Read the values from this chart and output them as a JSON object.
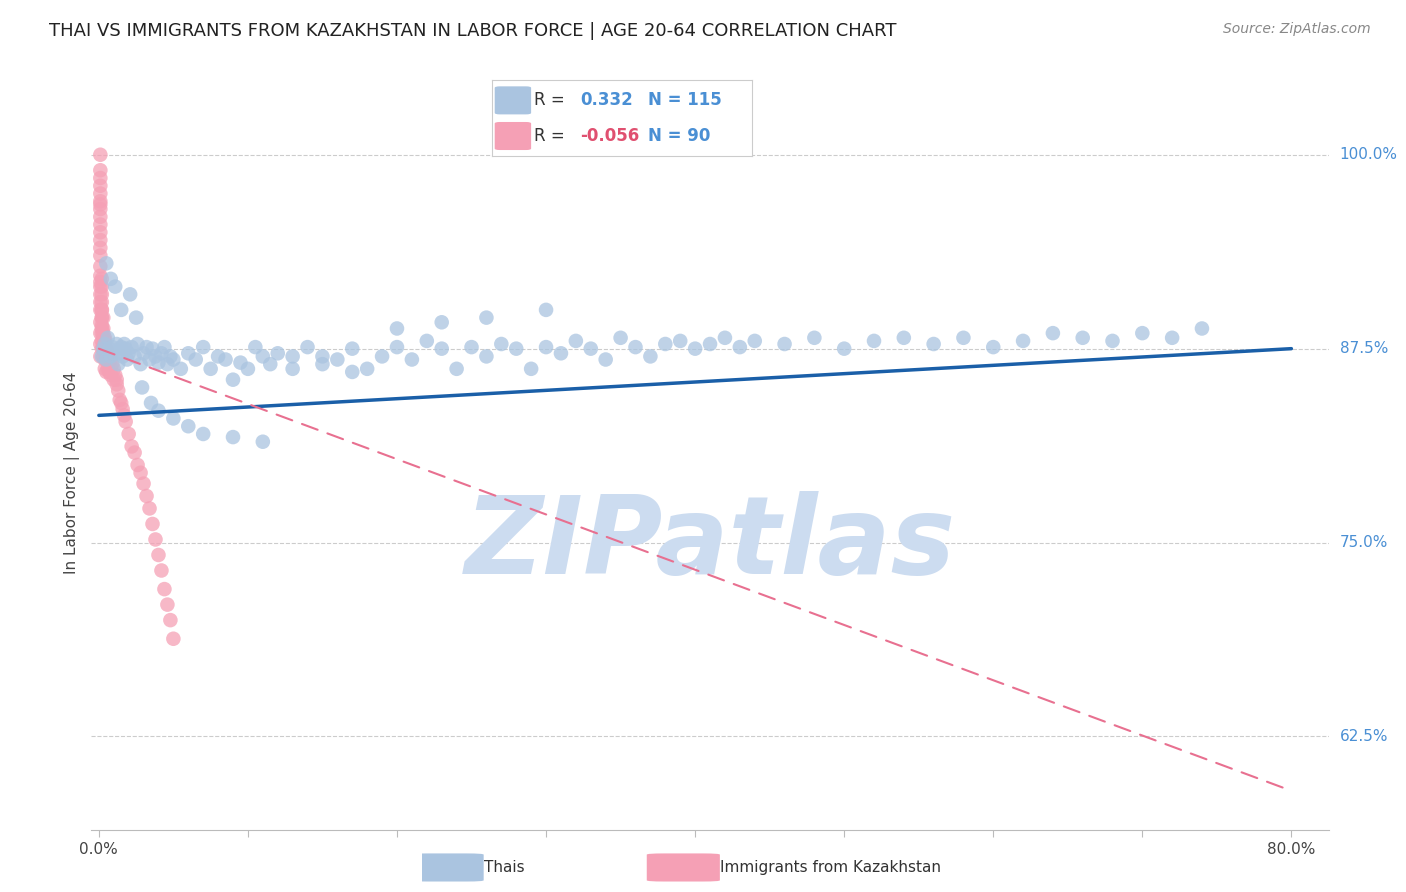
{
  "title": "THAI VS IMMIGRANTS FROM KAZAKHSTAN IN LABOR FORCE | AGE 20-64 CORRELATION CHART",
  "source": "Source: ZipAtlas.com",
  "ylabel": "In Labor Force | Age 20-64",
  "ytick_labels": [
    "100.0%",
    "87.5%",
    "75.0%",
    "62.5%"
  ],
  "ytick_values": [
    1.0,
    0.875,
    0.75,
    0.625
  ],
  "ymin": 0.565,
  "ymax": 1.025,
  "xmin": -0.005,
  "xmax": 0.825,
  "r_thai": 0.332,
  "n_thai": 115,
  "r_kaz": -0.056,
  "n_kaz": 90,
  "thai_color": "#aac4e0",
  "kaz_color": "#f5a0b5",
  "trend_thai_color": "#1a5fa8",
  "trend_kaz_color": "#e87090",
  "watermark": "ZIPatlas",
  "watermark_color": "#ccdcf0",
  "title_fontsize": 13,
  "source_fontsize": 10,
  "axis_label_fontsize": 11,
  "tick_fontsize": 11,
  "thai_trend_x": [
    0.0,
    0.8
  ],
  "thai_trend_y": [
    0.832,
    0.875
  ],
  "kaz_trend_x": [
    0.0,
    0.8
  ],
  "kaz_trend_y": [
    0.875,
    0.59
  ],
  "thai_points_x": [
    0.002,
    0.003,
    0.004,
    0.005,
    0.006,
    0.007,
    0.008,
    0.009,
    0.01,
    0.012,
    0.013,
    0.014,
    0.015,
    0.016,
    0.017,
    0.018,
    0.019,
    0.02,
    0.022,
    0.024,
    0.026,
    0.028,
    0.03,
    0.032,
    0.034,
    0.036,
    0.038,
    0.04,
    0.042,
    0.044,
    0.046,
    0.048,
    0.05,
    0.055,
    0.06,
    0.065,
    0.07,
    0.075,
    0.08,
    0.085,
    0.09,
    0.095,
    0.1,
    0.105,
    0.11,
    0.115,
    0.12,
    0.13,
    0.14,
    0.15,
    0.16,
    0.17,
    0.18,
    0.19,
    0.2,
    0.21,
    0.22,
    0.23,
    0.24,
    0.25,
    0.26,
    0.27,
    0.28,
    0.29,
    0.3,
    0.31,
    0.32,
    0.33,
    0.34,
    0.35,
    0.36,
    0.37,
    0.38,
    0.39,
    0.4,
    0.41,
    0.42,
    0.43,
    0.44,
    0.46,
    0.48,
    0.5,
    0.52,
    0.54,
    0.56,
    0.58,
    0.6,
    0.62,
    0.64,
    0.66,
    0.68,
    0.7,
    0.72,
    0.74,
    0.005,
    0.008,
    0.011,
    0.015,
    0.021,
    0.025,
    0.029,
    0.035,
    0.04,
    0.05,
    0.06,
    0.07,
    0.09,
    0.11,
    0.13,
    0.15,
    0.17,
    0.2,
    0.23,
    0.26,
    0.3
  ],
  "thai_points_y": [
    0.87,
    0.875,
    0.878,
    0.868,
    0.882,
    0.875,
    0.87,
    0.876,
    0.872,
    0.878,
    0.865,
    0.872,
    0.876,
    0.87,
    0.878,
    0.875,
    0.868,
    0.872,
    0.876,
    0.87,
    0.878,
    0.865,
    0.872,
    0.876,
    0.868,
    0.875,
    0.87,
    0.866,
    0.872,
    0.876,
    0.865,
    0.87,
    0.868,
    0.862,
    0.872,
    0.868,
    0.876,
    0.862,
    0.87,
    0.868,
    0.855,
    0.866,
    0.862,
    0.876,
    0.87,
    0.865,
    0.872,
    0.862,
    0.876,
    0.87,
    0.868,
    0.875,
    0.862,
    0.87,
    0.876,
    0.868,
    0.88,
    0.875,
    0.862,
    0.876,
    0.87,
    0.878,
    0.875,
    0.862,
    0.876,
    0.872,
    0.88,
    0.875,
    0.868,
    0.882,
    0.876,
    0.87,
    0.878,
    0.88,
    0.875,
    0.878,
    0.882,
    0.876,
    0.88,
    0.878,
    0.882,
    0.875,
    0.88,
    0.882,
    0.878,
    0.882,
    0.876,
    0.88,
    0.885,
    0.882,
    0.88,
    0.885,
    0.882,
    0.888,
    0.93,
    0.92,
    0.915,
    0.9,
    0.91,
    0.895,
    0.85,
    0.84,
    0.835,
    0.83,
    0.825,
    0.82,
    0.818,
    0.815,
    0.87,
    0.865,
    0.86,
    0.888,
    0.892,
    0.895,
    0.9
  ],
  "kaz_points_x": [
    0.001,
    0.001,
    0.001,
    0.001,
    0.001,
    0.001,
    0.001,
    0.001,
    0.001,
    0.001,
    0.001,
    0.001,
    0.001,
    0.001,
    0.001,
    0.001,
    0.001,
    0.001,
    0.001,
    0.001,
    0.002,
    0.002,
    0.002,
    0.002,
    0.002,
    0.002,
    0.002,
    0.002,
    0.002,
    0.002,
    0.003,
    0.003,
    0.003,
    0.003,
    0.003,
    0.004,
    0.004,
    0.004,
    0.004,
    0.005,
    0.005,
    0.005,
    0.006,
    0.006,
    0.007,
    0.007,
    0.008,
    0.008,
    0.009,
    0.01,
    0.01,
    0.011,
    0.012,
    0.013,
    0.014,
    0.015,
    0.016,
    0.017,
    0.018,
    0.02,
    0.022,
    0.024,
    0.026,
    0.028,
    0.03,
    0.032,
    0.034,
    0.036,
    0.038,
    0.04,
    0.042,
    0.044,
    0.046,
    0.048,
    0.05,
    0.001,
    0.001,
    0.001,
    0.001,
    0.001,
    0.002,
    0.002,
    0.002,
    0.003,
    0.003,
    0.004,
    0.005,
    0.006,
    0.008,
    0.012
  ],
  "kaz_points_y": [
    1.0,
    0.99,
    0.985,
    0.98,
    0.975,
    0.97,
    0.968,
    0.965,
    0.96,
    0.955,
    0.95,
    0.945,
    0.94,
    0.935,
    0.928,
    0.922,
    0.918,
    0.915,
    0.91,
    0.905,
    0.92,
    0.915,
    0.91,
    0.905,
    0.9,
    0.895,
    0.89,
    0.885,
    0.88,
    0.875,
    0.895,
    0.888,
    0.882,
    0.876,
    0.87,
    0.882,
    0.875,
    0.868,
    0.862,
    0.875,
    0.868,
    0.86,
    0.872,
    0.862,
    0.87,
    0.86,
    0.868,
    0.858,
    0.865,
    0.862,
    0.855,
    0.858,
    0.852,
    0.848,
    0.842,
    0.84,
    0.836,
    0.832,
    0.828,
    0.82,
    0.812,
    0.808,
    0.8,
    0.795,
    0.788,
    0.78,
    0.772,
    0.762,
    0.752,
    0.742,
    0.732,
    0.72,
    0.71,
    0.7,
    0.688,
    0.9,
    0.892,
    0.885,
    0.878,
    0.87,
    0.9,
    0.895,
    0.888,
    0.885,
    0.878,
    0.88,
    0.875,
    0.87,
    0.862,
    0.855
  ]
}
